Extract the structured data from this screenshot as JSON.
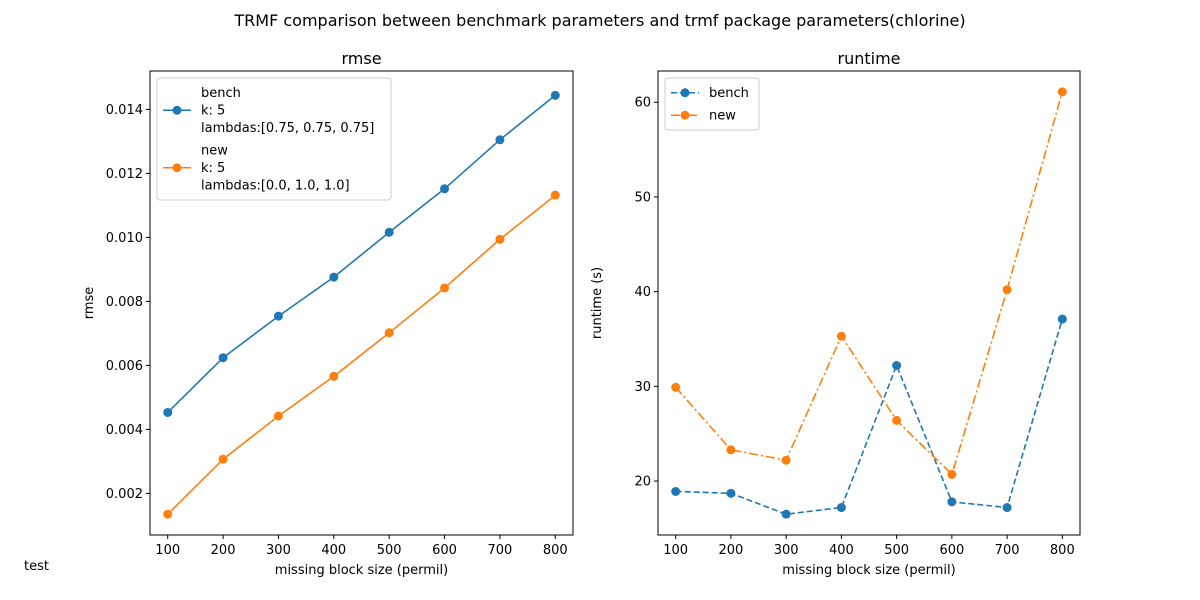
{
  "figure": {
    "suptitle": "TRMF comparison between benchmark parameters and trmf package parameters(chlorine)",
    "footnote": "test"
  },
  "colors": {
    "bench": "#1f77b4",
    "new": "#ff7f0e"
  },
  "chart_data": [
    {
      "type": "line",
      "title": "rmse",
      "xlabel": "missing block size (permil)",
      "ylabel": "rmse",
      "x": [
        100,
        200,
        300,
        400,
        500,
        600,
        700,
        800
      ],
      "xticks": [
        "100",
        "200",
        "300",
        "400",
        "500",
        "600",
        "700",
        "800"
      ],
      "xlim": [
        68,
        832
      ],
      "ylim": [
        0.0007,
        0.0152
      ],
      "yticks": [
        "0.002",
        "0.004",
        "0.006",
        "0.008",
        "0.010",
        "0.012",
        "0.014"
      ],
      "ytick_values": [
        0.002,
        0.004,
        0.006,
        0.008,
        0.01,
        0.012,
        0.014
      ],
      "legend_placement": "upper-left",
      "series": [
        {
          "name": "bench",
          "legend_lines": [
            "bench",
            "k: 5",
            "lambdas:[0.75, 0.75, 0.75]"
          ],
          "linestyle": "solid",
          "values": [
            0.00453,
            0.00624,
            0.00754,
            0.00876,
            0.01016,
            0.01152,
            0.01305,
            0.01444
          ]
        },
        {
          "name": "new",
          "legend_lines": [
            "new",
            "k: 5",
            "lambdas:[0.0, 1.0, 1.0]"
          ],
          "linestyle": "solid",
          "values": [
            0.00135,
            0.00307,
            0.00442,
            0.00566,
            0.00702,
            0.00842,
            0.00994,
            0.01132
          ]
        }
      ],
      "grid": false
    },
    {
      "type": "line",
      "title": "runtime",
      "xlabel": "missing block size (permil)",
      "ylabel": "runtime (s)",
      "x": [
        100,
        200,
        300,
        400,
        500,
        600,
        700,
        800
      ],
      "xticks": [
        "100",
        "200",
        "300",
        "400",
        "500",
        "600",
        "700",
        "800"
      ],
      "xlim": [
        68,
        832
      ],
      "ylim": [
        14.3,
        63.3
      ],
      "yticks": [
        "20",
        "30",
        "40",
        "50",
        "60"
      ],
      "ytick_values": [
        20,
        30,
        40,
        50,
        60
      ],
      "legend_placement": "upper-left",
      "series": [
        {
          "name": "bench",
          "legend_lines": [
            "bench"
          ],
          "linestyle": "dashed",
          "values": [
            18.9,
            18.7,
            16.5,
            17.2,
            32.2,
            17.8,
            17.2,
            37.1
          ]
        },
        {
          "name": "new",
          "legend_lines": [
            "new"
          ],
          "linestyle": "dashdot",
          "values": [
            29.9,
            23.3,
            22.2,
            35.3,
            26.4,
            20.7,
            40.2,
            61.1
          ]
        }
      ],
      "grid": false
    }
  ]
}
